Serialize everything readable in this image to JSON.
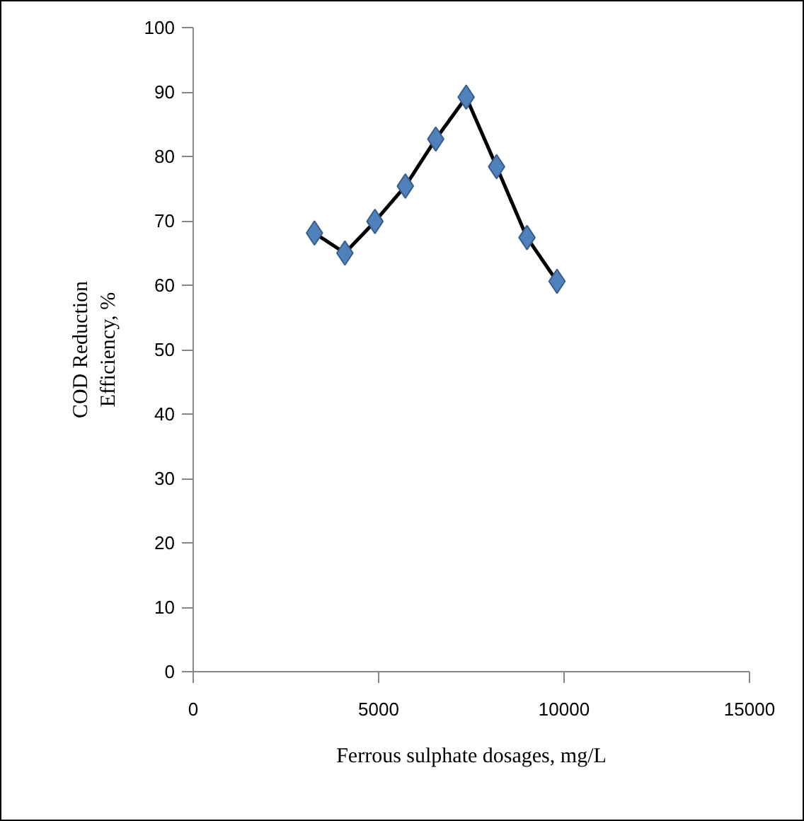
{
  "chart_data": {
    "type": "line",
    "xlabel": "Ferrous sulphate dosages, mg/L",
    "ylabel": "COD Reduction\nEfficiency, %",
    "x": [
      3270,
      4090,
      4900,
      5720,
      6540,
      7360,
      8180,
      9000,
      9810
    ],
    "series": [
      {
        "color": "#4f81bd",
        "values": [
          68.1,
          65.0,
          69.9,
          75.4,
          82.7,
          89.2,
          78.4,
          67.4,
          60.6
        ]
      }
    ],
    "xlim": [
      0,
      15000
    ],
    "xticks": [
      0,
      5000,
      10000,
      15000
    ],
    "ylim": [
      0,
      100
    ],
    "yticks": [
      0,
      10,
      20,
      30,
      40,
      50,
      60,
      70,
      80,
      90,
      100
    ],
    "grid": false,
    "marker": "diamond",
    "line_style": "solid"
  }
}
